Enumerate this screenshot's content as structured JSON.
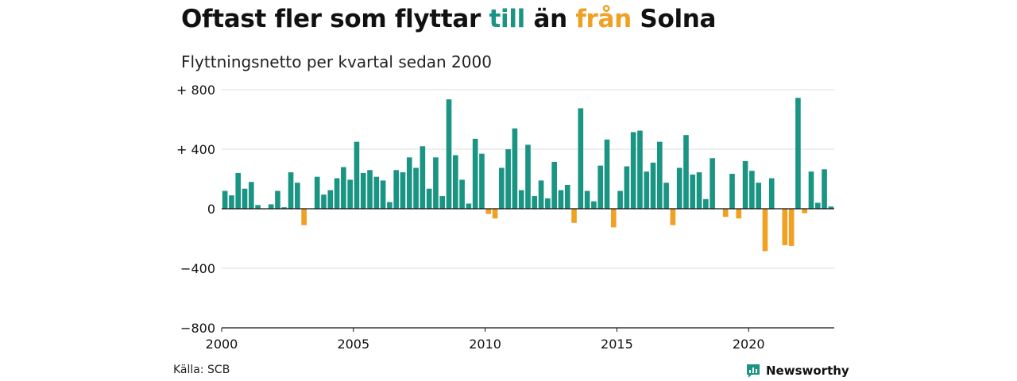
{
  "title": {
    "part1": "Oftast fler som flyttar ",
    "part2": "till",
    "part3": " än ",
    "part4": "från",
    "part5": " Solna"
  },
  "subtitle": "Flyttningsnetto per kvartal sedan 2000",
  "source": "Källa: SCB",
  "brand": {
    "name": "Newsworthy",
    "icon": "newsworthy-logo-icon"
  },
  "colors": {
    "positive": "#1a9483",
    "negative": "#f0a022",
    "grid": "#dddddd",
    "axis": "#111111",
    "text": "#111111"
  },
  "chart_data": {
    "type": "bar",
    "title": "",
    "xlabel": "",
    "ylabel": "",
    "ylim": [
      -800,
      800
    ],
    "xlim": [
      2000,
      2023.25
    ],
    "y_ticks": [
      {
        "value": 800,
        "label": "+ 800"
      },
      {
        "value": 400,
        "label": "+ 400"
      },
      {
        "value": 0,
        "label": "0"
      },
      {
        "value": -400,
        "label": "−400"
      },
      {
        "value": -800,
        "label": "−800"
      }
    ],
    "x_ticks": [
      {
        "value": 2000,
        "label": "2000"
      },
      {
        "value": 2005,
        "label": "2005"
      },
      {
        "value": 2010,
        "label": "2010"
      },
      {
        "value": 2015,
        "label": "2015"
      },
      {
        "value": 2020,
        "label": "2020"
      }
    ],
    "grid": true,
    "start": "2000-Q1",
    "series": [
      {
        "values": [
          120,
          90,
          240,
          135,
          180,
          25,
          0,
          30,
          120,
          10,
          245,
          175,
          -110,
          0,
          215,
          95,
          125,
          205,
          280,
          195,
          450,
          240,
          260,
          215,
          190,
          45,
          260,
          245,
          345,
          275,
          420,
          135,
          345,
          85,
          735,
          360,
          195,
          35,
          470,
          370,
          -35,
          -65,
          275,
          400,
          540,
          125,
          430,
          85,
          190,
          70,
          315,
          125,
          160,
          -95,
          675,
          120,
          50,
          290,
          465,
          -125,
          120,
          285,
          515,
          525,
          250,
          310,
          450,
          175,
          -110,
          275,
          495,
          230,
          245,
          65,
          340,
          0,
          -55,
          235,
          -65,
          320,
          255,
          175,
          -285,
          205,
          0,
          -245,
          -250,
          745,
          -30,
          250,
          40,
          265,
          15
        ]
      }
    ]
  }
}
